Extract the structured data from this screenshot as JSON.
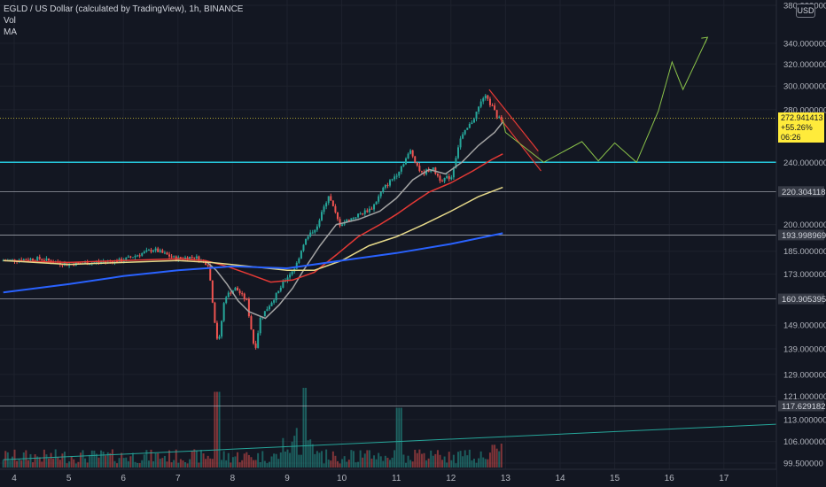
{
  "legend": {
    "title": "EGLD / US Dollar (calculated by TradingView), 1h, BINANCE",
    "vol": "Vol",
    "ma": "MA"
  },
  "currency_label": "USD",
  "last_price": {
    "price": "272.941413",
    "change": "+55.26%",
    "countdown": "06:26"
  },
  "colors": {
    "background": "#131722",
    "up": "#26a69a",
    "down": "#ef5350",
    "ma_fast": "#a3a3a3",
    "ma_red": "#e53935",
    "ma_yellow": "#e6d98a",
    "ma_blue": "#2962ff",
    "support_cyan": "#26c6da",
    "projection": "#8bc34a",
    "channel": "#e53935"
  },
  "chart_data": {
    "type": "candlestick",
    "y_scale": "log",
    "ylim": [
      99.5,
      380
    ],
    "xlim": [
      3.8,
      17.8
    ],
    "x_ticks": [
      4,
      5,
      6,
      7,
      8,
      9,
      10,
      11,
      12,
      13,
      14,
      15,
      16,
      17
    ],
    "x_tick_labels": [
      "4",
      "5",
      "6",
      "7",
      "8",
      "9",
      "10",
      "11",
      "12",
      "13",
      "14",
      "15",
      "16",
      "17"
    ],
    "y_ticks": [
      380,
      340,
      320,
      300,
      280,
      240,
      200,
      185,
      173,
      149,
      139,
      129,
      121,
      113,
      106,
      99.5
    ],
    "y_tick_labels": [
      "380.000000",
      "340.000000",
      "320.000000",
      "300.000000",
      "280.000000",
      "240.000000",
      "200.000000",
      "185.000000",
      "173.000000",
      "149.000000",
      "139.000000",
      "129.000000",
      "121.000000",
      "113.000000",
      "106.000000",
      "99.500000"
    ],
    "horizontal_levels": [
      {
        "price": 240,
        "label": "",
        "color": "#26c6da",
        "width": 1.5
      },
      {
        "price": 220.304118,
        "label": "220.304118",
        "color": "#b2b5be",
        "width": 0.7
      },
      {
        "price": 193.998969,
        "label": "193.998969",
        "color": "#b2b5be",
        "width": 0.7
      },
      {
        "price": 160.905395,
        "label": "160.905395",
        "color": "#b2b5be",
        "width": 0.7
      },
      {
        "price": 117.629182,
        "label": "117.629182",
        "color": "#b2b5be",
        "width": 0.7
      }
    ],
    "last_price": 272.941413,
    "price_path": [
      [
        3.8,
        180
      ],
      [
        4.5,
        181
      ],
      [
        5.0,
        178
      ],
      [
        5.5,
        179
      ],
      [
        6.0,
        180
      ],
      [
        6.4,
        184
      ],
      [
        6.6,
        186
      ],
      [
        7.0,
        181
      ],
      [
        7.35,
        182
      ],
      [
        7.6,
        178
      ],
      [
        7.72,
        150
      ],
      [
        7.78,
        140
      ],
      [
        7.9,
        162
      ],
      [
        8.1,
        166
      ],
      [
        8.3,
        160
      ],
      [
        8.45,
        138
      ],
      [
        8.55,
        152
      ],
      [
        8.9,
        165
      ],
      [
        9.0,
        170
      ],
      [
        9.2,
        177
      ],
      [
        9.35,
        190
      ],
      [
        9.6,
        200
      ],
      [
        9.8,
        218
      ],
      [
        10.0,
        200
      ],
      [
        10.3,
        205
      ],
      [
        10.6,
        210
      ],
      [
        10.8,
        222
      ],
      [
        11.05,
        232
      ],
      [
        11.3,
        248
      ],
      [
        11.5,
        232
      ],
      [
        11.7,
        236
      ],
      [
        11.85,
        228
      ],
      [
        12.05,
        230
      ],
      [
        12.2,
        256
      ],
      [
        12.45,
        272
      ],
      [
        12.65,
        292
      ],
      [
        12.8,
        282
      ],
      [
        12.9,
        273
      ]
    ],
    "moving_averages": [
      {
        "name": "",
        "color": "#a3a3a3",
        "points": [
          [
            7.5,
            180
          ],
          [
            7.7,
            175
          ],
          [
            7.9,
            168
          ],
          [
            8.1,
            160
          ],
          [
            8.3,
            155
          ],
          [
            8.6,
            152
          ],
          [
            8.85,
            158
          ],
          [
            9.1,
            166
          ],
          [
            9.3,
            175
          ],
          [
            9.6,
            188
          ],
          [
            9.9,
            200
          ],
          [
            10.3,
            203
          ],
          [
            10.7,
            208
          ],
          [
            11.0,
            216
          ],
          [
            11.3,
            228
          ],
          [
            11.6,
            235
          ],
          [
            11.9,
            232
          ],
          [
            12.2,
            240
          ],
          [
            12.5,
            252
          ],
          [
            12.8,
            262
          ],
          [
            12.95,
            270
          ]
        ]
      },
      {
        "name": "",
        "color": "#e53935",
        "points": [
          [
            3.8,
            180
          ],
          [
            5.0,
            179
          ],
          [
            6.0,
            180
          ],
          [
            7.0,
            181
          ],
          [
            7.5,
            180
          ],
          [
            7.9,
            177
          ],
          [
            8.3,
            173
          ],
          [
            8.7,
            169
          ],
          [
            9.1,
            170
          ],
          [
            9.5,
            174
          ],
          [
            9.9,
            183
          ],
          [
            10.3,
            193
          ],
          [
            10.7,
            200
          ],
          [
            11.0,
            206
          ],
          [
            11.3,
            213
          ],
          [
            11.6,
            220
          ],
          [
            12.0,
            226
          ],
          [
            12.4,
            234
          ],
          [
            12.75,
            242
          ],
          [
            12.95,
            246
          ]
        ]
      },
      {
        "name": "",
        "color": "#e6d98a",
        "points": [
          [
            3.8,
            180
          ],
          [
            5.0,
            178
          ],
          [
            6.0,
            179
          ],
          [
            7.0,
            180
          ],
          [
            7.6,
            179
          ],
          [
            8.3,
            177
          ],
          [
            9.0,
            175
          ],
          [
            9.5,
            175
          ],
          [
            10.0,
            180
          ],
          [
            10.5,
            188
          ],
          [
            11.0,
            193
          ],
          [
            11.5,
            200
          ],
          [
            12.0,
            208
          ],
          [
            12.5,
            217
          ],
          [
            12.95,
            223
          ]
        ]
      },
      {
        "name": "",
        "color": "#2962ff",
        "points": [
          [
            3.8,
            164
          ],
          [
            5.0,
            168
          ],
          [
            6.0,
            172
          ],
          [
            7.0,
            175
          ],
          [
            8.0,
            177
          ],
          [
            9.0,
            176
          ],
          [
            10.0,
            180
          ],
          [
            11.0,
            184
          ],
          [
            12.0,
            189
          ],
          [
            12.95,
            195
          ]
        ]
      }
    ],
    "down_channel": [
      {
        "from": [
          12.7,
          297
        ],
        "to": [
          13.6,
          248
        ]
      },
      {
        "from": [
          12.9,
          273
        ],
        "to": [
          13.65,
          234
        ]
      }
    ],
    "projection": [
      [
        12.95,
        272
      ],
      [
        13.0,
        262
      ],
      [
        13.7,
        240
      ],
      [
        14.4,
        255
      ],
      [
        14.7,
        241
      ],
      [
        15.0,
        254
      ],
      [
        15.4,
        240
      ],
      [
        15.8,
        279
      ],
      [
        16.05,
        322
      ],
      [
        16.25,
        297
      ],
      [
        16.7,
        346
      ]
    ],
    "volume": {
      "trend_line": {
        "from": [
          3.8,
          100.5
        ],
        "to": [
          17.8,
          111.5
        ]
      }
    }
  }
}
